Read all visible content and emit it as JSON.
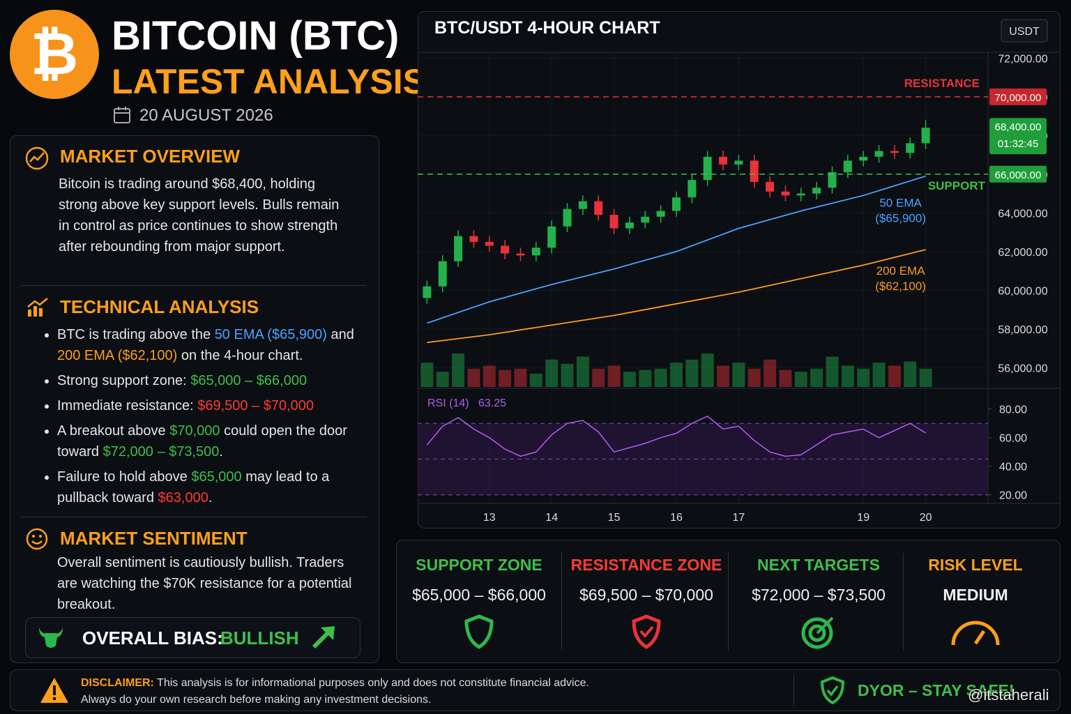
{
  "header": {
    "title": "BITCOIN (BTC)",
    "subtitle": "LATEST ANALYSIS",
    "date": "20 AUGUST 2026"
  },
  "market_overview": {
    "title": "MARKET OVERVIEW",
    "text": "Bitcoin is trading around $68,400, holding strong above key support levels. Bulls remain in control as price continues to show strength after rebounding from major support."
  },
  "technical_analysis": {
    "title": "TECHNICAL ANALYSIS",
    "bullets": [
      [
        {
          "text": "BTC is trading above the "
        },
        {
          "text": "50 EMA ($65,900)",
          "tone": "blue"
        },
        {
          "text": " and "
        },
        {
          "text": "200 EMA ($62,100)",
          "tone": "orange"
        },
        {
          "text": " on the 4-hour chart."
        }
      ],
      [
        {
          "text": "Strong support zone: "
        },
        {
          "text": "$65,000 – $66,000",
          "tone": "green"
        }
      ],
      [
        {
          "text": "Immediate resistance: "
        },
        {
          "text": "$69,500 – $70,000",
          "tone": "red"
        }
      ],
      [
        {
          "text": "A breakout above "
        },
        {
          "text": "$70,000",
          "tone": "green"
        },
        {
          "text": " could open the door toward "
        },
        {
          "text": "$72,000 – $73,500",
          "tone": "green"
        },
        {
          "text": "."
        }
      ],
      [
        {
          "text": "Failure to hold above "
        },
        {
          "text": "$65,000",
          "tone": "green"
        },
        {
          "text": " may lead to a pullback toward "
        },
        {
          "text": "$63,000",
          "tone": "red"
        },
        {
          "text": "."
        }
      ]
    ]
  },
  "market_sentiment": {
    "title": "MARKET SENTIMENT",
    "text": "Overall sentiment is cautiously bullish. Traders are watching the $70K resistance for a potential breakout.",
    "bias_label": "OVERALL BIAS:",
    "bias": "BULLISH"
  },
  "stats": [
    {
      "title": "SUPPORT ZONE",
      "value": "$65,000 – $66,000",
      "tone": "green"
    },
    {
      "title": "RESISTANCE ZONE",
      "value": "$69,500 – $70,000",
      "tone": "red"
    },
    {
      "title": "NEXT TARGETS",
      "value": "$72,000 – $73,500",
      "tone": "green"
    },
    {
      "title": "RISK LEVEL",
      "value": "MEDIUM",
      "tone": "orange"
    }
  ],
  "disclaimer": {
    "label": "DISCLAIMER:",
    "text": "This analysis is for informational purposes only and does not constitute financial advice.",
    "text2": "Always do your own research before making any investment decisions.",
    "badge": "DYOR – STAY SAFE!"
  },
  "watermark": "@itstaherali",
  "chart_data": {
    "type": "candlestick",
    "title": "BTC/USDT 4-HOUR CHART",
    "currency": "USDT",
    "up_color": "#22b14c",
    "down_color": "#e8333a",
    "x": [
      12,
      12.25,
      12.5,
      12.75,
      13,
      13.25,
      13.5,
      13.75,
      14,
      14.25,
      14.5,
      14.75,
      15,
      15.25,
      15.5,
      15.75,
      16,
      16.25,
      16.5,
      16.75,
      17,
      17.25,
      17.5,
      17.75,
      18,
      18.25,
      18.5,
      18.75,
      19,
      19.25,
      19.5,
      19.75,
      20
    ],
    "open": [
      59600,
      60200,
      61500,
      62800,
      62500,
      62300,
      61900,
      61800,
      62200,
      63300,
      64200,
      64600,
      63900,
      63200,
      63500,
      63800,
      64100,
      64800,
      65700,
      66900,
      66500,
      66700,
      65600,
      65100,
      64900,
      65000,
      65300,
      66100,
      66700,
      66900,
      67200,
      67100,
      67600
    ],
    "high": [
      60500,
      61800,
      63100,
      63100,
      62800,
      62600,
      62200,
      62500,
      63600,
      64500,
      64900,
      64900,
      64200,
      63800,
      64100,
      64400,
      65100,
      66000,
      67200,
      67200,
      67000,
      67000,
      65900,
      65400,
      65300,
      65600,
      66400,
      67000,
      67200,
      67500,
      67500,
      67900,
      68800
    ],
    "low": [
      59300,
      59900,
      61200,
      62200,
      62000,
      61600,
      61500,
      61500,
      61900,
      63000,
      63900,
      63600,
      62900,
      62900,
      63200,
      63500,
      63800,
      64500,
      65400,
      66200,
      66200,
      65300,
      64800,
      64600,
      64600,
      64700,
      65000,
      65800,
      66400,
      66600,
      66800,
      66800,
      67300
    ],
    "close": [
      60200,
      61500,
      62800,
      62500,
      62300,
      61900,
      61800,
      62200,
      63300,
      64200,
      64600,
      63900,
      63200,
      63500,
      63800,
      64100,
      64800,
      65700,
      66900,
      66500,
      66700,
      65600,
      65100,
      64900,
      65000,
      65300,
      66100,
      66700,
      66900,
      67200,
      67100,
      67600,
      68400
    ],
    "volume": [
      40,
      25,
      55,
      30,
      35,
      28,
      30,
      22,
      45,
      38,
      50,
      30,
      35,
      25,
      28,
      30,
      40,
      45,
      55,
      35,
      40,
      30,
      45,
      28,
      25,
      30,
      50,
      35,
      30,
      40,
      35,
      42,
      30
    ],
    "xlim": [
      11.85,
      21
    ],
    "xticks": [
      13,
      14,
      15,
      16,
      17,
      19,
      20
    ],
    "ylim": [
      55000,
      72300
    ],
    "yticks": [
      {
        "value": 56000,
        "label": "56,000.00"
      },
      {
        "value": 58000,
        "label": "58,000.00"
      },
      {
        "value": 60000,
        "label": "60,000.00"
      },
      {
        "value": 62000,
        "label": "62,000.00"
      },
      {
        "value": 64000,
        "label": "64,000.00"
      },
      {
        "value": 66000,
        "label": "66,000.00"
      },
      {
        "value": 68000,
        "label": "68,000.00"
      },
      {
        "value": 70000,
        "label": "70,000.00"
      },
      {
        "value": 72000,
        "label": "72,000.00"
      }
    ],
    "resistance": {
      "name": "RESISTANCE",
      "value": 70000,
      "label": "70,000.00",
      "color": "#e8333a"
    },
    "support": {
      "name": "SUPPORT",
      "value": 66000,
      "label": "66,000.00",
      "color": "#3fbf4a"
    },
    "current_price": {
      "value": 68400,
      "label": "68,400.00",
      "countdown": "01:32:45",
      "color": "#1f9e3a"
    },
    "ema": [
      {
        "name": "50 EMA",
        "value_label": "($65,900)",
        "color": "#4aa3ff",
        "x": [
          12,
          13,
          14,
          15,
          16,
          17,
          18,
          19,
          20
        ],
        "values": [
          58300,
          59400,
          60300,
          61100,
          62000,
          63200,
          64100,
          64900,
          65900
        ]
      },
      {
        "name": "200 EMA",
        "value_label": "($62,100)",
        "color": "#ff9a1f",
        "x": [
          12,
          13,
          14,
          15,
          16,
          17,
          18,
          19,
          20
        ],
        "values": [
          57300,
          57700,
          58200,
          58700,
          59300,
          59900,
          60600,
          61300,
          62100
        ]
      }
    ],
    "rsi": {
      "name": "RSI (14)",
      "color": "#b45cf0",
      "values": [
        55,
        68,
        74,
        66,
        60,
        52,
        47,
        50,
        62,
        70,
        72,
        64,
        50,
        53,
        56,
        60,
        63,
        70,
        75,
        66,
        68,
        58,
        50,
        47,
        48,
        55,
        62,
        64,
        66,
        60,
        65,
        70,
        63.25
      ],
      "ylim": [
        14,
        93
      ],
      "yticks": [
        {
          "value": 20,
          "label": "20.00"
        },
        {
          "value": 40,
          "label": "40.00"
        },
        {
          "value": 60,
          "label": "60.00"
        },
        {
          "value": 80,
          "label": "80.00"
        }
      ],
      "levels": [
        70,
        45,
        20
      ]
    }
  }
}
